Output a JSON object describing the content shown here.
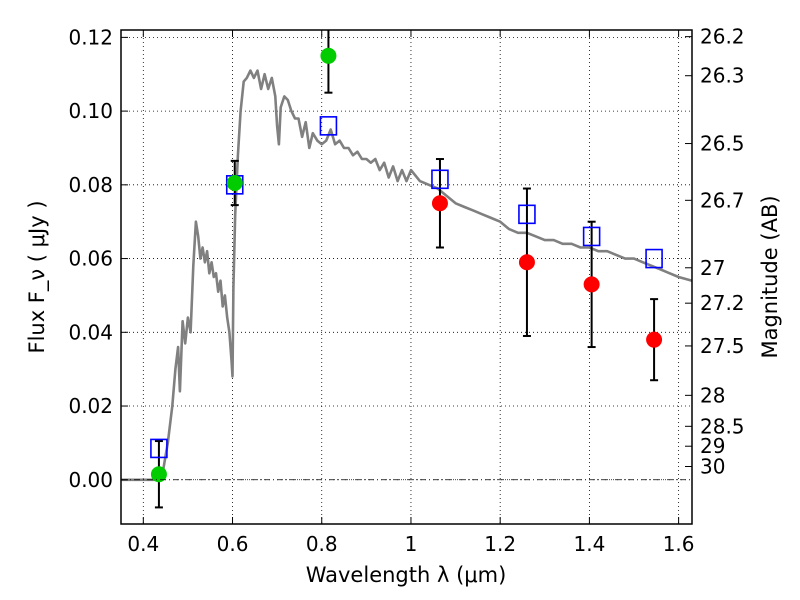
{
  "chart_data": {
    "type": "scatter",
    "xlabel": "Wavelength  λ (μm)",
    "ylabel": "Flux  F_ν  ( μJy )",
    "ylabel_right": "Magnitude (AB)",
    "xlim": [
      0.35,
      1.63
    ],
    "ylim": [
      -0.012,
      0.122
    ],
    "grid": true,
    "x_ticks": [
      {
        "value": 0.4,
        "label": "0.4"
      },
      {
        "value": 0.6,
        "label": "0.6"
      },
      {
        "value": 0.8,
        "label": "0.8"
      },
      {
        "value": 1.0,
        "label": "1"
      },
      {
        "value": 1.2,
        "label": "1.2"
      },
      {
        "value": 1.4,
        "label": "1.4"
      },
      {
        "value": 1.6,
        "label": "1.6"
      }
    ],
    "y_ticks": [
      {
        "value": 0.0,
        "label": "0.00"
      },
      {
        "value": 0.02,
        "label": "0.02"
      },
      {
        "value": 0.04,
        "label": "0.04"
      },
      {
        "value": 0.06,
        "label": "0.06"
      },
      {
        "value": 0.08,
        "label": "0.08"
      },
      {
        "value": 0.1,
        "label": "0.10"
      },
      {
        "value": 0.12,
        "label": "0.12"
      }
    ],
    "magnitude_ticks": [
      {
        "label": "26.2",
        "flux": 0.1202
      },
      {
        "label": "26.3",
        "flux": 0.1096
      },
      {
        "label": "26.5",
        "flux": 0.0912
      },
      {
        "label": "26.7",
        "flux": 0.0758
      },
      {
        "label": "27",
        "flux": 0.0575
      },
      {
        "label": "27.2",
        "flux": 0.0479
      },
      {
        "label": "27.5",
        "flux": 0.0363
      },
      {
        "label": "28",
        "flux": 0.0229
      },
      {
        "label": "28.5",
        "flux": 0.0145
      },
      {
        "label": "29",
        "flux": 0.0091
      },
      {
        "label": "30",
        "flux": 0.0036
      }
    ],
    "series": [
      {
        "kind": "line",
        "color": "#808080",
        "points": [
          [
            0.35,
            0.0
          ],
          [
            0.43,
            0.0
          ],
          [
            0.445,
            0.003
          ],
          [
            0.455,
            0.01
          ],
          [
            0.465,
            0.02
          ],
          [
            0.472,
            0.03
          ],
          [
            0.478,
            0.036
          ],
          [
            0.482,
            0.024
          ],
          [
            0.488,
            0.043
          ],
          [
            0.494,
            0.037
          ],
          [
            0.5,
            0.044
          ],
          [
            0.506,
            0.04
          ],
          [
            0.512,
            0.058
          ],
          [
            0.518,
            0.07
          ],
          [
            0.523,
            0.066
          ],
          [
            0.528,
            0.06
          ],
          [
            0.533,
            0.063
          ],
          [
            0.538,
            0.059
          ],
          [
            0.543,
            0.062
          ],
          [
            0.548,
            0.056
          ],
          [
            0.553,
            0.059
          ],
          [
            0.558,
            0.055
          ],
          [
            0.563,
            0.056
          ],
          [
            0.568,
            0.051
          ],
          [
            0.573,
            0.054
          ],
          [
            0.578,
            0.047
          ],
          [
            0.583,
            0.05
          ],
          [
            0.588,
            0.044
          ],
          [
            0.593,
            0.04
          ],
          [
            0.598,
            0.032
          ],
          [
            0.6,
            0.028
          ],
          [
            0.602,
            0.052
          ],
          [
            0.606,
            0.072
          ],
          [
            0.612,
            0.088
          ],
          [
            0.618,
            0.1
          ],
          [
            0.625,
            0.108
          ],
          [
            0.632,
            0.109
          ],
          [
            0.64,
            0.111
          ],
          [
            0.648,
            0.109
          ],
          [
            0.656,
            0.111
          ],
          [
            0.664,
            0.106
          ],
          [
            0.672,
            0.11
          ],
          [
            0.68,
            0.106
          ],
          [
            0.688,
            0.109
          ],
          [
            0.696,
            0.104
          ],
          [
            0.7,
            0.096
          ],
          [
            0.704,
            0.091
          ],
          [
            0.708,
            0.101
          ],
          [
            0.716,
            0.104
          ],
          [
            0.724,
            0.103
          ],
          [
            0.732,
            0.1
          ],
          [
            0.74,
            0.098
          ],
          [
            0.748,
            0.098
          ],
          [
            0.756,
            0.093
          ],
          [
            0.764,
            0.097
          ],
          [
            0.772,
            0.09
          ],
          [
            0.78,
            0.094
          ],
          [
            0.79,
            0.092
          ],
          [
            0.8,
            0.091
          ],
          [
            0.81,
            0.092
          ],
          [
            0.82,
            0.095
          ],
          [
            0.83,
            0.091
          ],
          [
            0.84,
            0.092
          ],
          [
            0.85,
            0.09
          ],
          [
            0.86,
            0.09
          ],
          [
            0.87,
            0.088
          ],
          [
            0.88,
            0.089
          ],
          [
            0.89,
            0.087
          ],
          [
            0.9,
            0.087
          ],
          [
            0.91,
            0.086
          ],
          [
            0.92,
            0.087
          ],
          [
            0.93,
            0.084
          ],
          [
            0.94,
            0.086
          ],
          [
            0.95,
            0.082
          ],
          [
            0.96,
            0.085
          ],
          [
            0.97,
            0.081
          ],
          [
            0.98,
            0.084
          ],
          [
            0.99,
            0.081
          ],
          [
            1.0,
            0.084
          ],
          [
            1.02,
            0.081
          ],
          [
            1.04,
            0.08
          ],
          [
            1.06,
            0.079
          ],
          [
            1.08,
            0.077
          ],
          [
            1.1,
            0.075
          ],
          [
            1.12,
            0.074
          ],
          [
            1.14,
            0.073
          ],
          [
            1.16,
            0.072
          ],
          [
            1.18,
            0.071
          ],
          [
            1.2,
            0.07
          ],
          [
            1.22,
            0.068
          ],
          [
            1.24,
            0.067
          ],
          [
            1.26,
            0.067
          ],
          [
            1.28,
            0.066
          ],
          [
            1.3,
            0.065
          ],
          [
            1.32,
            0.065
          ],
          [
            1.34,
            0.064
          ],
          [
            1.36,
            0.064
          ],
          [
            1.38,
            0.063
          ],
          [
            1.4,
            0.063
          ],
          [
            1.42,
            0.062
          ],
          [
            1.44,
            0.062
          ],
          [
            1.46,
            0.061
          ],
          [
            1.48,
            0.06
          ],
          [
            1.5,
            0.06
          ],
          [
            1.52,
            0.059
          ],
          [
            1.54,
            0.058
          ],
          [
            1.56,
            0.057
          ],
          [
            1.58,
            0.056
          ],
          [
            1.6,
            0.055
          ],
          [
            1.63,
            0.054
          ]
        ]
      },
      {
        "kind": "squares",
        "color": "#0000ff",
        "points": [
          [
            0.435,
            0.0085
          ],
          [
            0.605,
            0.08
          ],
          [
            0.815,
            0.096
          ],
          [
            1.065,
            0.0815
          ],
          [
            1.26,
            0.072
          ],
          [
            1.405,
            0.066
          ],
          [
            1.545,
            0.06
          ]
        ]
      },
      {
        "kind": "circles",
        "color": "#00cc00",
        "points": [
          {
            "x": 0.435,
            "y": 0.0015,
            "err": 0.009
          },
          {
            "x": 0.605,
            "y": 0.0805,
            "err": 0.006
          },
          {
            "x": 0.815,
            "y": 0.115,
            "err": 0.01
          }
        ]
      },
      {
        "kind": "circles",
        "color": "#ff0000",
        "points": [
          {
            "x": 1.065,
            "y": 0.075,
            "err": 0.012
          },
          {
            "x": 1.26,
            "y": 0.059,
            "err": 0.02
          },
          {
            "x": 1.405,
            "y": 0.053,
            "err": 0.017
          },
          {
            "x": 1.545,
            "y": 0.038,
            "err": 0.011
          }
        ]
      }
    ]
  }
}
